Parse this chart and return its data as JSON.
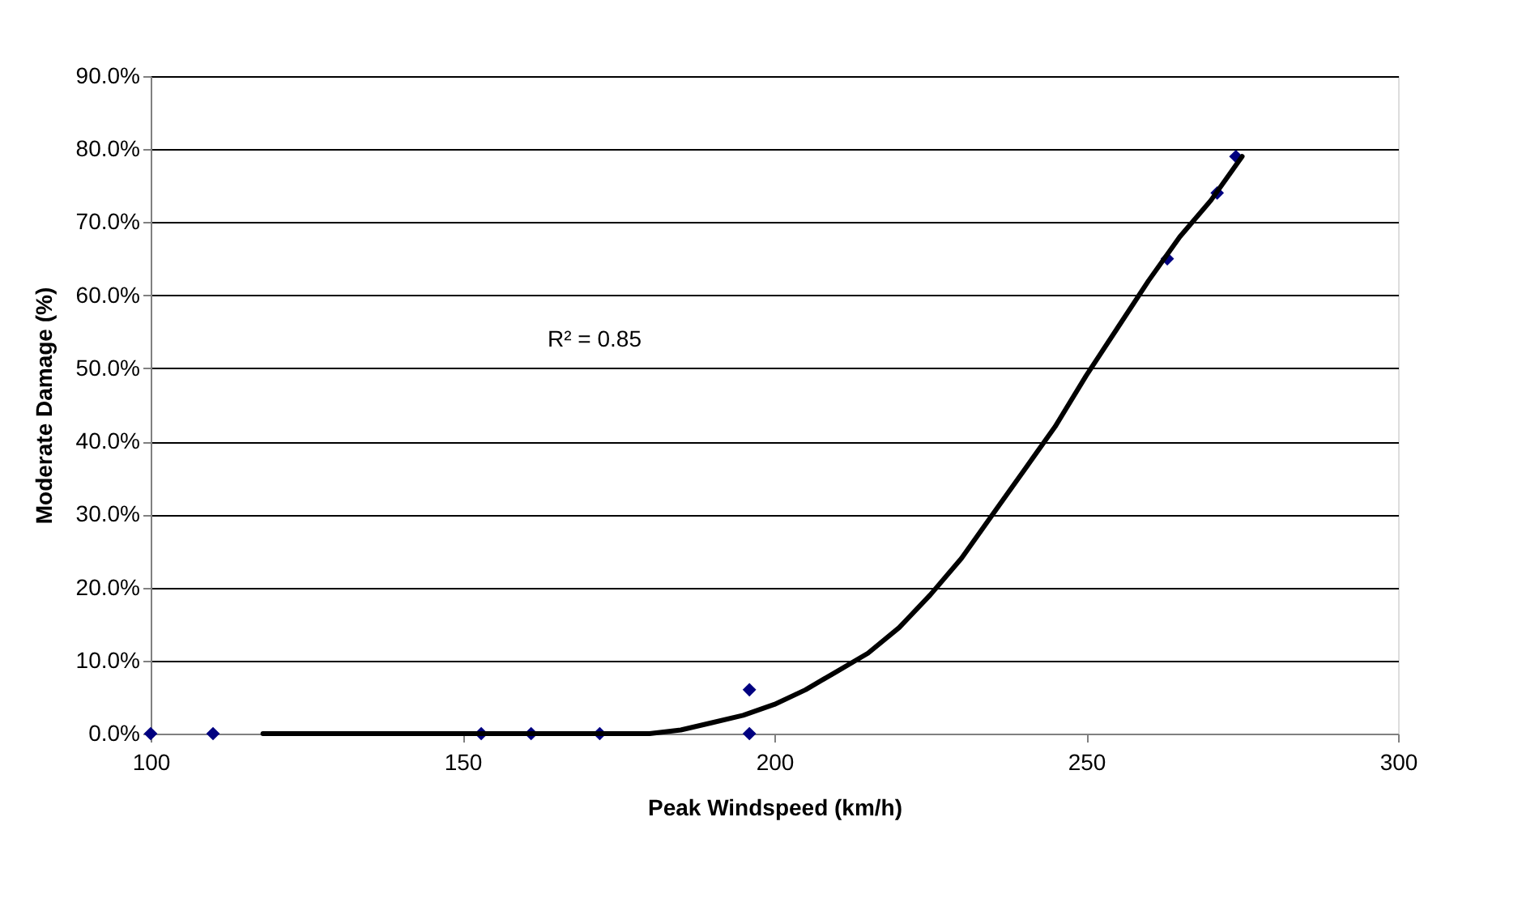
{
  "chart_data": {
    "type": "scatter",
    "xlabel": "Peak Windspeed (km/h)",
    "ylabel": "Moderate Damage (%)",
    "annotations": [
      "R² = 0.85"
    ],
    "xlim": [
      100,
      300
    ],
    "xticks": [
      100,
      150,
      200,
      250,
      300
    ],
    "ylim": [
      0,
      90
    ],
    "yticks": [
      {
        "value": 0,
        "label": "0.0%"
      },
      {
        "value": 10,
        "label": "10.0%"
      },
      {
        "value": 20,
        "label": "20.0%"
      },
      {
        "value": 30,
        "label": "30.0%"
      },
      {
        "value": 40,
        "label": "40.0%"
      },
      {
        "value": 50,
        "label": "50.0%"
      },
      {
        "value": 60,
        "label": "60.0%"
      },
      {
        "value": 70,
        "label": "70.0%"
      },
      {
        "value": 80,
        "label": "80.0%"
      },
      {
        "value": 90,
        "label": "90.0%"
      }
    ],
    "grid": "y",
    "marker": "diamond",
    "series": [
      {
        "color": "#000080",
        "x": [
          100,
          110,
          153,
          161,
          172,
          196,
          196,
          263,
          271,
          274
        ],
        "values": [
          0,
          0,
          0,
          0,
          0,
          0,
          6,
          65,
          74,
          79
        ]
      },
      {
        "type": "line",
        "color": "#000000",
        "line_style": "solid",
        "marker": "none",
        "x": [
          118,
          180,
          185,
          190,
          195,
          200,
          205,
          210,
          215,
          220,
          225,
          230,
          235,
          240,
          245,
          250,
          255,
          260,
          265,
          270,
          275
        ],
        "values": [
          0,
          0,
          0.5,
          1.5,
          2.5,
          4,
          6,
          8.5,
          11,
          14.5,
          19,
          24,
          30,
          36,
          42,
          49,
          55.5,
          62,
          68,
          73,
          79
        ]
      }
    ]
  }
}
